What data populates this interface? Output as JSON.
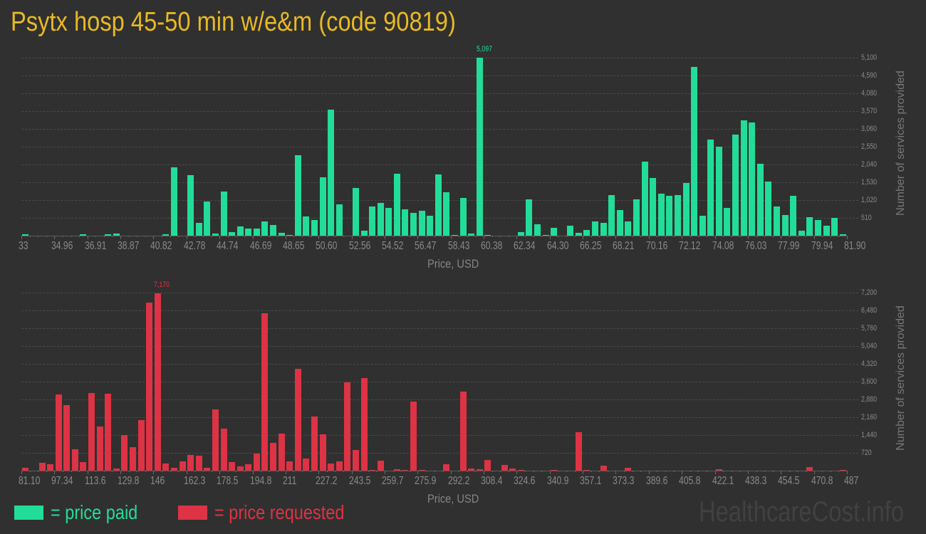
{
  "page": {
    "title": "Psytx hosp 45-50 min w/e&m (code 90819)",
    "watermark": "HealthcareCost.info"
  },
  "colors": {
    "title": "#e8b923",
    "price_paid": "#22dd99",
    "price_requested": "#dd3344",
    "background": "#303030"
  },
  "legend": [
    {
      "label": "= price paid",
      "color": "#22dd99"
    },
    {
      "label": "= price requested",
      "color": "#dd3344"
    }
  ],
  "chart_data": [
    {
      "type": "bar",
      "title": "Price paid distribution",
      "series_name": "price paid",
      "color": "#22dd99",
      "xlabel": "Price, USD",
      "ylabel": "Number of services provided",
      "x_range": [
        33,
        81.9
      ],
      "bin_count": 100,
      "bin_width": 0.489,
      "x_tick_labels": [
        "33",
        "34.96",
        "36.91",
        "38.87",
        "40.82",
        "42.78",
        "44.74",
        "46.69",
        "48.65",
        "50.60",
        "52.56",
        "54.52",
        "56.47",
        "58.43",
        "60.38",
        "62.34",
        "64.30",
        "66.25",
        "68.21",
        "70.16",
        "72.12",
        "74.08",
        "76.03",
        "77.99",
        "79.94",
        "81.90"
      ],
      "y_ticks": [
        510,
        1020,
        1530,
        2040,
        2550,
        3060,
        3570,
        4080,
        4590,
        5100
      ],
      "y_tick_labels": [
        "510",
        "1,020",
        "1,530",
        "2,040",
        "2,550",
        "3,060",
        "3,570",
        "4,080",
        "4,590",
        "5,100"
      ],
      "ylim": [
        0,
        5100
      ],
      "grid": true,
      "peak_label": {
        "index": 55,
        "text": "5,097"
      },
      "values": [
        40,
        0,
        0,
        0,
        0,
        0,
        0,
        40,
        0,
        0,
        40,
        55,
        0,
        0,
        0,
        0,
        0,
        40,
        1950,
        0,
        1730,
        360,
        990,
        55,
        1260,
        95,
        260,
        200,
        200,
        400,
        300,
        75,
        20,
        2300,
        545,
        445,
        1665,
        3605,
        890,
        0,
        1360,
        135,
        830,
        930,
        790,
        1770,
        750,
        645,
        710,
        565,
        1750,
        1240,
        20,
        1075,
        55,
        5097,
        20,
        0,
        0,
        0,
        95,
        1035,
        320,
        20,
        220,
        0,
        280,
        75,
        155,
        400,
        360,
        1155,
        730,
        400,
        1035,
        2115,
        1645,
        1195,
        1135,
        1155,
        1505,
        4830,
        565,
        2745,
        2545,
        790,
        2890,
        3300,
        3235,
        2055,
        1545,
        830,
        585,
        1135,
        135,
        525,
        445,
        280,
        505,
        40
      ]
    },
    {
      "type": "bar",
      "title": "Price requested distribution",
      "series_name": "price requested",
      "color": "#dd3344",
      "xlabel": "Price, USD",
      "ylabel": "Number of services provided",
      "x_range": [
        81.1,
        487
      ],
      "bin_count": 100,
      "bin_width": 4.06,
      "x_tick_labels": [
        "81.10",
        "97.34",
        "113.6",
        "129.8",
        "146",
        "162.3",
        "178.5",
        "194.8",
        "211",
        "227.2",
        "243.5",
        "259.7",
        "275.9",
        "292.2",
        "308.4",
        "324.6",
        "340.9",
        "357.1",
        "373.3",
        "389.6",
        "405.8",
        "422.1",
        "438.3",
        "454.5",
        "470.8",
        "487"
      ],
      "y_ticks": [
        720,
        1440,
        2160,
        2880,
        3600,
        4320,
        5040,
        5760,
        6480,
        7200
      ],
      "y_tick_labels": [
        "720",
        "1,440",
        "2,160",
        "2,880",
        "3,600",
        "4,320",
        "5,040",
        "5,760",
        "6,480",
        "7,200"
      ],
      "ylim": [
        0,
        7200
      ],
      "grid": true,
      "peak_label": {
        "index": 16,
        "text": "7,170"
      },
      "values": [
        115,
        0,
        315,
        260,
        3080,
        2650,
        865,
        345,
        3140,
        1785,
        3110,
        85,
        1440,
        950,
        2045,
        6800,
        7170,
        290,
        115,
        375,
        635,
        605,
        115,
        2475,
        1700,
        345,
        175,
        260,
        690,
        6365,
        1125,
        1500,
        375,
        4120,
        490,
        2190,
        1470,
        290,
        375,
        3570,
        835,
        3745,
        30,
        405,
        0,
        60,
        20,
        2795,
        30,
        0,
        0,
        260,
        0,
        3195,
        85,
        60,
        430,
        0,
        230,
        85,
        20,
        0,
        0,
        0,
        30,
        0,
        0,
        1555,
        30,
        0,
        200,
        0,
        0,
        115,
        0,
        0,
        0,
        0,
        0,
        0,
        0,
        0,
        0,
        0,
        60,
        0,
        0,
        0,
        0,
        0,
        0,
        0,
        0,
        0,
        0,
        145,
        0,
        0,
        0,
        20
      ]
    }
  ]
}
